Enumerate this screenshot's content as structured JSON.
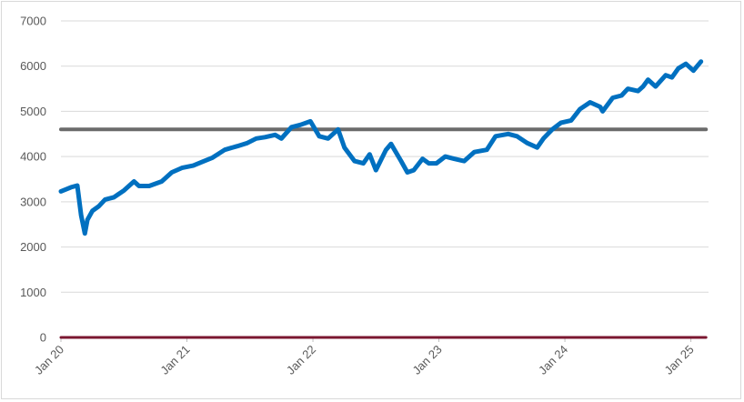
{
  "chart_data": {
    "type": "line",
    "title": "",
    "xlabel": "",
    "ylabel": "",
    "ylim": [
      0,
      7000
    ],
    "yticks": [
      0,
      1000,
      2000,
      3000,
      4000,
      5000,
      6000,
      7000
    ],
    "ytick_labels": [
      "0",
      "1000",
      "2000",
      "3000",
      "4000",
      "5000",
      "6000",
      "7000"
    ],
    "x_tick_labels": [
      "Jan 20",
      "Jan 21",
      "Jan 22",
      "Jan 23",
      "Jan 24",
      "Jan 25"
    ],
    "x_tick_years": [
      2020,
      2021,
      2022,
      2023,
      2024,
      2025
    ],
    "grid": true,
    "legend": "none",
    "series": [
      {
        "color": "#0070c0",
        "x": [
          2020.0,
          2020.08,
          2020.13,
          2020.16,
          2020.19,
          2020.21,
          2020.25,
          2020.3,
          2020.35,
          2020.42,
          2020.5,
          2020.58,
          2020.62,
          2020.7,
          2020.8,
          2020.88,
          2020.96,
          2021.05,
          2021.12,
          2021.2,
          2021.3,
          2021.4,
          2021.48,
          2021.55,
          2021.62,
          2021.7,
          2021.75,
          2021.83,
          2021.9,
          2021.98,
          2022.05,
          2022.12,
          2022.2,
          2022.25,
          2022.33,
          2022.4,
          2022.45,
          2022.5,
          2022.58,
          2022.62,
          2022.7,
          2022.75,
          2022.8,
          2022.87,
          2022.92,
          2022.98,
          2023.05,
          2023.12,
          2023.2,
          2023.28,
          2023.38,
          2023.45,
          2023.55,
          2023.62,
          2023.7,
          2023.78,
          2023.83,
          2023.9,
          2023.97,
          2024.05,
          2024.12,
          2024.2,
          2024.28,
          2024.3,
          2024.38,
          2024.45,
          2024.5,
          2024.58,
          2024.62,
          2024.66,
          2024.72,
          2024.8,
          2024.85,
          2024.9,
          2024.96,
          2025.02,
          2025.08
        ],
        "y": [
          3230,
          3320,
          3360,
          2700,
          2300,
          2600,
          2800,
          2900,
          3050,
          3100,
          3250,
          3450,
          3350,
          3350,
          3450,
          3650,
          3750,
          3800,
          3880,
          3970,
          4150,
          4230,
          4300,
          4400,
          4430,
          4480,
          4400,
          4650,
          4700,
          4780,
          4450,
          4400,
          4600,
          4200,
          3900,
          3850,
          4050,
          3700,
          4150,
          4280,
          3900,
          3650,
          3700,
          3950,
          3850,
          3850,
          4000,
          3950,
          3900,
          4100,
          4150,
          4450,
          4500,
          4450,
          4300,
          4200,
          4400,
          4600,
          4750,
          4800,
          5050,
          5200,
          5100,
          5000,
          5300,
          5350,
          5500,
          5450,
          5550,
          5700,
          5550,
          5800,
          5750,
          5950,
          6050,
          5900,
          6100
        ]
      },
      {
        "color": "#6b6b6b",
        "x": [
          2020.0,
          2025.12
        ],
        "y": [
          4600,
          4600
        ]
      },
      {
        "color": "#7b1730",
        "x": [
          2020.0,
          2025.12
        ],
        "y": [
          0,
          0
        ]
      }
    ]
  }
}
